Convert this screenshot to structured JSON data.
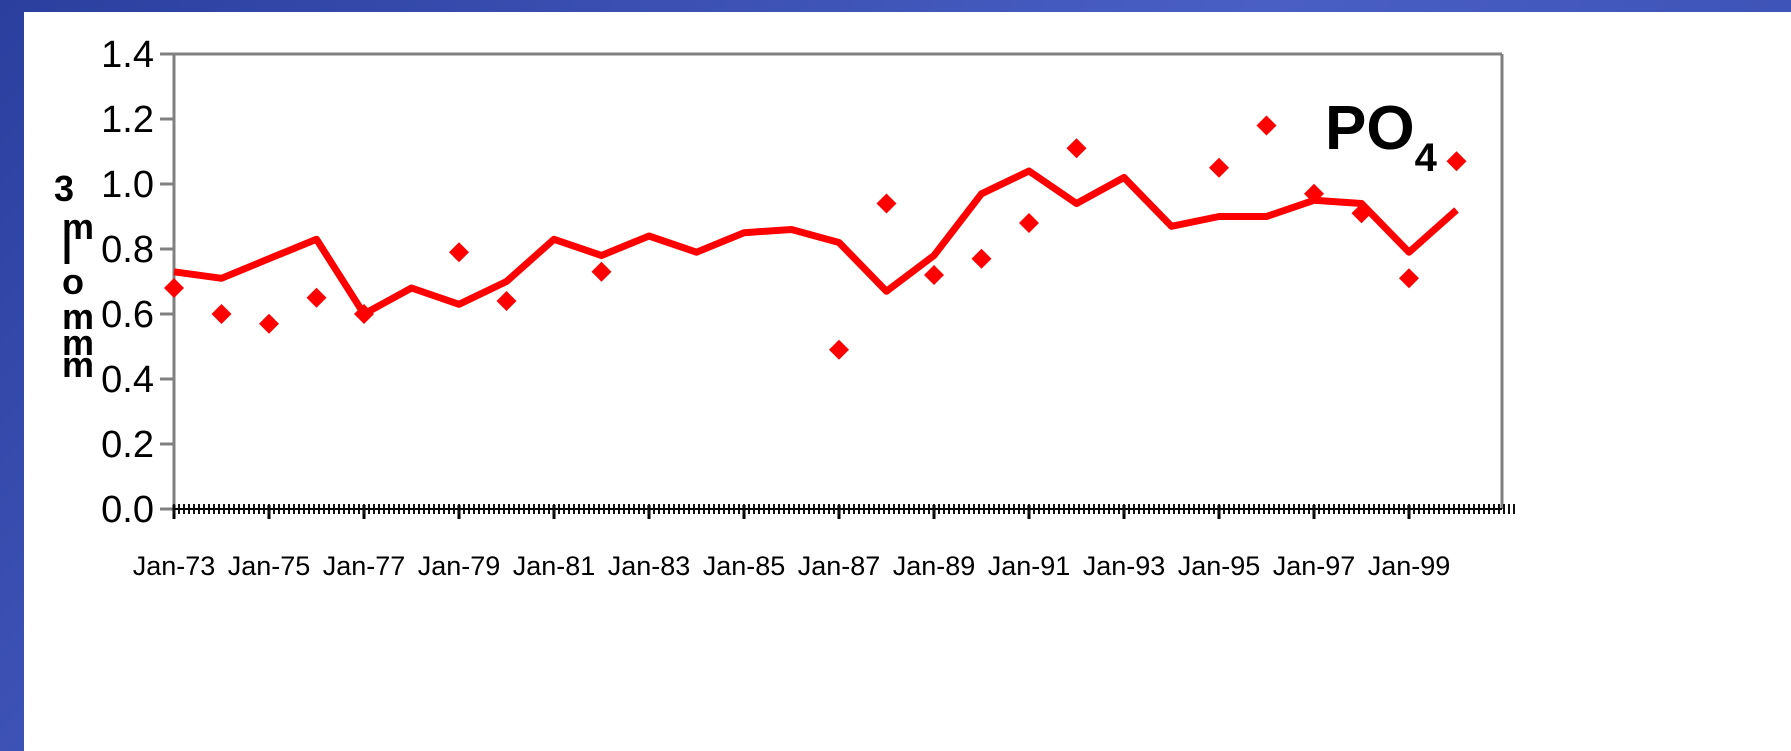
{
  "chart_data": {
    "type": "line",
    "title": "",
    "annotation": {
      "main": "PO",
      "sub": "4"
    },
    "ylabel_chars": [
      "3",
      "m",
      "l",
      "o",
      "m",
      "m",
      "m"
    ],
    "xlabel": "",
    "ylim": [
      0,
      1.4
    ],
    "ytick_values": [
      0,
      0.2,
      0.4,
      0.6,
      0.8,
      1.0,
      1.2,
      1.4
    ],
    "ytick_labels": [
      "0.0",
      "0.2",
      "0.4",
      "0.6",
      "0.8",
      "1.0",
      "1.2",
      "1.4"
    ],
    "xlim": [
      1973,
      1987.0
    ],
    "xtick_labels": [
      "Jan-73",
      "Jan-75",
      "Jan-77",
      "Jan-79",
      "Jan-81",
      "Jan-83",
      "Jan-85",
      "Jan-87",
      "Jan-89",
      "Jan-91",
      "Jan-93",
      "Jan-95",
      "Jan-97",
      "Jan-99"
    ],
    "grid": false,
    "legend": "none",
    "colors": {
      "series": "#ff0000",
      "axis": "#808080",
      "panel": "#ffffff"
    },
    "series": [
      {
        "kind": "line",
        "points": [
          [
            1973.0,
            0.73
          ],
          [
            1973.5,
            0.71
          ],
          [
            1974.0,
            0.77
          ],
          [
            1974.5,
            0.83
          ],
          [
            1975.0,
            0.6
          ],
          [
            1975.5,
            0.68
          ],
          [
            1976.0,
            0.63
          ],
          [
            1976.5,
            0.7
          ],
          [
            1977.0,
            0.83
          ],
          [
            1977.5,
            0.78
          ],
          [
            1978.0,
            0.84
          ],
          [
            1978.5,
            0.79
          ],
          [
            1979.0,
            0.85
          ],
          [
            1979.5,
            0.86
          ],
          [
            1980.0,
            0.82
          ],
          [
            1980.5,
            0.67
          ],
          [
            1981.0,
            0.78
          ],
          [
            1981.5,
            0.97
          ],
          [
            1982.0,
            1.04
          ],
          [
            1982.5,
            0.94
          ],
          [
            1983.0,
            1.02
          ],
          [
            1983.5,
            0.87
          ],
          [
            1984.0,
            0.9
          ],
          [
            1984.5,
            0.9
          ],
          [
            1985.0,
            0.95
          ],
          [
            1985.5,
            0.94
          ],
          [
            1986.0,
            0.79
          ],
          [
            1986.5,
            0.92
          ]
        ]
      },
      {
        "kind": "scatter",
        "points": [
          [
            1973.0,
            0.68
          ],
          [
            1973.5,
            0.6
          ],
          [
            1974.0,
            0.57
          ],
          [
            1974.5,
            0.65
          ],
          [
            1975.0,
            0.6
          ],
          [
            1976.0,
            0.79
          ],
          [
            1976.5,
            0.64
          ],
          [
            1977.5,
            0.73
          ],
          [
            1980.0,
            0.49
          ],
          [
            1980.5,
            0.94
          ],
          [
            1981.0,
            0.72
          ],
          [
            1981.5,
            0.77
          ],
          [
            1982.0,
            0.88
          ],
          [
            1982.5,
            1.11
          ],
          [
            1984.0,
            1.05
          ],
          [
            1984.5,
            1.18
          ],
          [
            1985.0,
            0.97
          ],
          [
            1985.5,
            0.91
          ],
          [
            1986.0,
            0.71
          ],
          [
            1986.5,
            1.07
          ]
        ]
      }
    ]
  }
}
